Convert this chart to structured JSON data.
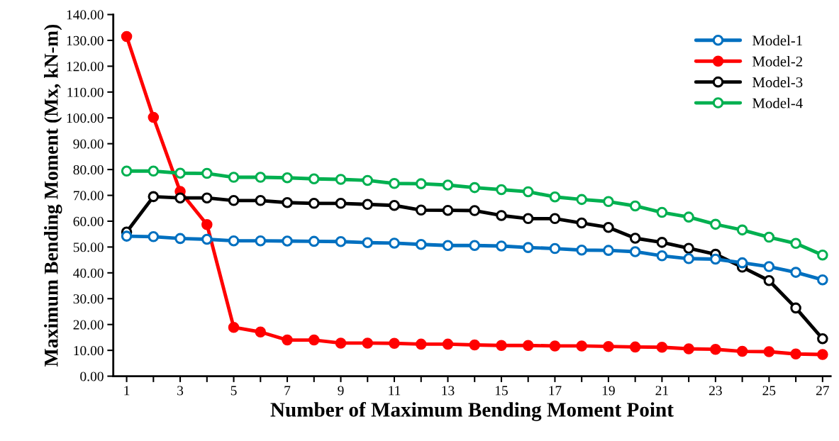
{
  "chart_data": {
    "type": "line",
    "xlabel": "Number of Maximum Bending Moment Point",
    "ylabel": "Maximum Bending Moment (Mx, kN-m)",
    "x": [
      1,
      2,
      3,
      4,
      5,
      6,
      7,
      8,
      9,
      10,
      11,
      12,
      13,
      14,
      15,
      16,
      17,
      18,
      19,
      20,
      21,
      22,
      23,
      24,
      25,
      26,
      27
    ],
    "series": [
      {
        "name": "Model-1",
        "color": "#0070c0",
        "values": [
          54.2,
          54.0,
          53.3,
          53.0,
          52.4,
          52.4,
          52.3,
          52.2,
          52.1,
          51.7,
          51.5,
          51.0,
          50.6,
          50.6,
          50.4,
          49.8,
          49.4,
          48.8,
          48.7,
          48.2,
          46.6,
          45.5,
          45.3,
          43.9,
          42.4,
          40.2,
          37.3
        ]
      },
      {
        "name": "Model-2",
        "color": "#ff0000",
        "values": [
          131.5,
          100.2,
          71.5,
          58.7,
          18.9,
          17.1,
          14.0,
          14.0,
          12.8,
          12.8,
          12.7,
          12.4,
          12.4,
          12.1,
          11.9,
          11.9,
          11.7,
          11.7,
          11.5,
          11.3,
          11.2,
          10.6,
          10.4,
          9.6,
          9.5,
          8.6,
          8.4
        ]
      },
      {
        "name": "Model-3",
        "color": "#000000",
        "values": [
          55.8,
          69.5,
          69.0,
          69.0,
          68.0,
          68.0,
          67.2,
          66.9,
          66.9,
          66.5,
          66.1,
          64.3,
          64.2,
          64.1,
          62.2,
          61.0,
          61.0,
          59.3,
          57.6,
          53.4,
          51.8,
          49.5,
          47.2,
          42.2,
          37.0,
          26.4,
          14.5
        ]
      },
      {
        "name": "Model-4",
        "color": "#00b050",
        "values": [
          79.4,
          79.4,
          78.6,
          78.5,
          77.0,
          77.0,
          76.8,
          76.4,
          76.2,
          75.8,
          74.6,
          74.5,
          74.0,
          73.0,
          72.2,
          71.4,
          69.4,
          68.4,
          67.6,
          65.9,
          63.4,
          61.6,
          58.8,
          56.6,
          53.8,
          51.4,
          46.9
        ]
      }
    ],
    "xlim": [
      0.5,
      27.3
    ],
    "xticks": [
      1,
      {
        "value": 2,
        "label": null
      },
      3,
      {
        "value": 4,
        "label": null
      },
      5,
      {
        "value": 6,
        "label": null
      },
      7,
      {
        "value": 8,
        "label": null
      },
      9,
      {
        "value": 10,
        "label": null
      },
      11,
      {
        "value": 12,
        "label": null
      },
      13,
      {
        "value": 14,
        "label": null
      },
      15,
      {
        "value": 16,
        "label": null
      },
      17,
      {
        "value": 18,
        "label": null
      },
      19,
      {
        "value": 20,
        "label": null
      },
      21,
      {
        "value": 22,
        "label": null
      },
      23,
      {
        "value": 24,
        "label": null
      },
      25,
      {
        "value": 26,
        "label": null
      },
      27
    ],
    "ylim": [
      0,
      140
    ],
    "yticks": [
      {
        "value": 0,
        "label": "0.00"
      },
      {
        "value": 10,
        "label": "10.00"
      },
      {
        "value": 20,
        "label": "20.00"
      },
      {
        "value": 30,
        "label": "30.00"
      },
      {
        "value": 40,
        "label": "40.00"
      },
      {
        "value": 50,
        "label": "50.00"
      },
      {
        "value": 60,
        "label": "60.00"
      },
      {
        "value": 70,
        "label": "70.00"
      },
      {
        "value": 80,
        "label": "80.00"
      },
      {
        "value": 90,
        "label": "90.00"
      },
      {
        "value": 100,
        "label": "100.00"
      },
      {
        "value": 110,
        "label": "110.00"
      },
      {
        "value": 120,
        "label": "120.00"
      },
      {
        "value": 130,
        "label": "130.00"
      },
      {
        "value": 140,
        "label": "140.00"
      }
    ],
    "grid": false,
    "legend": "top right",
    "marker": "circle",
    "line_style": "solid"
  }
}
